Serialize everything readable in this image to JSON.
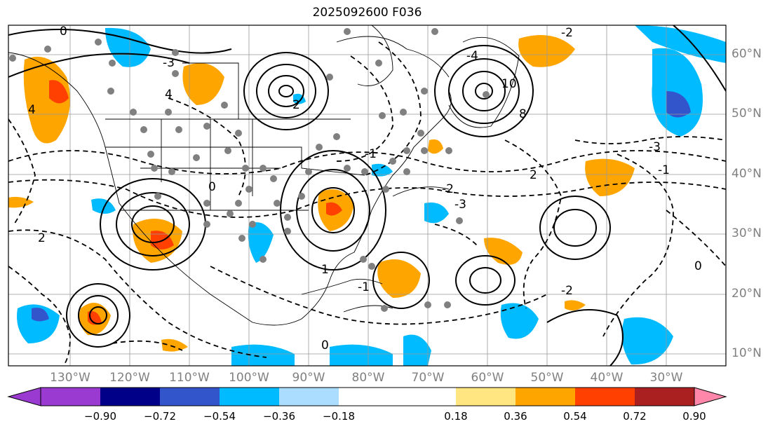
{
  "title": "2025092600 F036",
  "lat_labels": [
    "60°N",
    "50°N",
    "40°N",
    "30°N",
    "20°N",
    "10°N"
  ],
  "lon_labels": [
    "130°W",
    "120°W",
    "110°W",
    "100°W",
    "90°W",
    "80°W",
    "70°W",
    "60°W",
    "50°W",
    "40°W",
    "30°W"
  ],
  "colorbar": {
    "colors": [
      "#9a3ad0",
      "#000088",
      "#3355cc",
      "#00bbff",
      "#aaddff",
      "#ffffff",
      "#ffe680",
      "#ffa500",
      "#ff4000",
      "#aa1f1f",
      "#ff88aa"
    ],
    "labels": [
      "−0.90",
      "−0.72",
      "−0.54",
      "−0.36",
      "−0.18",
      "0.18",
      "0.36",
      "0.54",
      "0.72",
      "0.90"
    ]
  },
  "contour_labels": [
    "-2",
    "-4",
    "10",
    "8",
    "-3",
    "2",
    "-3",
    "-2",
    "-3",
    "0",
    "4",
    "1",
    "-1",
    "0",
    "-2",
    "2",
    "-1",
    "0",
    "4",
    "2",
    "0",
    "-1"
  ]
}
